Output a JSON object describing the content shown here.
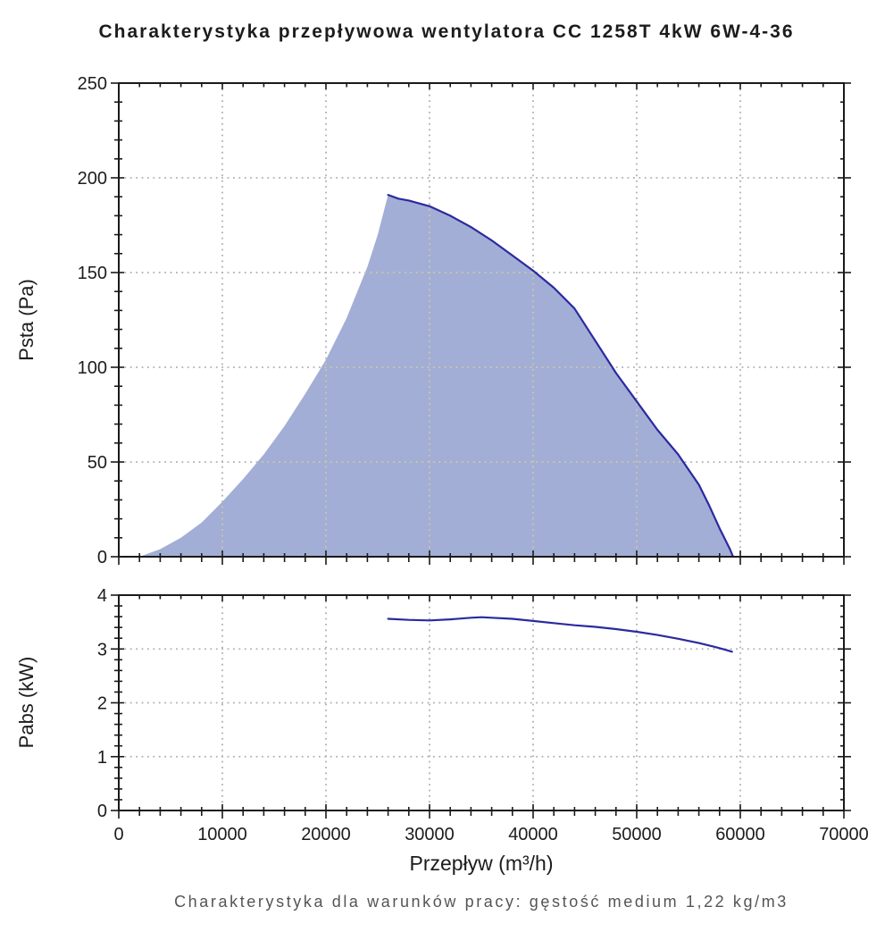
{
  "title": "Charakterystyka przepływowa wentylatora CC 1258T 4kW 6W-4-36",
  "footer": "Charakterystyka dla warunków pracy: gęstość medium 1,22 kg/m3",
  "colors": {
    "curve": "#2a2aa0",
    "fill": "#a2aed5",
    "grid": "#b0b0b0",
    "grid_on_fill": "#cfc9a4",
    "axis": "#1a1a1a",
    "title_text": "#1c1c1c",
    "footer_text": "#555555"
  },
  "chart_data": [
    {
      "type": "area",
      "title": "",
      "xlabel": "",
      "ylabel": "Psta (Pa)",
      "xlim": [
        0,
        70000
      ],
      "ylim": [
        0,
        250
      ],
      "xticks": [
        0,
        10000,
        20000,
        30000,
        40000,
        50000,
        60000,
        70000
      ],
      "yticks": [
        0,
        50,
        100,
        150,
        200,
        250
      ],
      "x_minor_step": 2000,
      "y_minor_step": 10,
      "show_x_tick_labels": false,
      "grid": true,
      "legend": "none",
      "series": [
        {
          "name": "Psta fill boundary (unstroked rising edge)",
          "role": "fill-edge",
          "x": [
            2000,
            4000,
            6000,
            8000,
            10000,
            12000,
            14000,
            16000,
            18000,
            20000,
            22000,
            24000,
            25000,
            26000
          ],
          "y": [
            0,
            4,
            10,
            18,
            29,
            41,
            54,
            69,
            86,
            104,
            126,
            153,
            170,
            191
          ]
        },
        {
          "name": "Psta working-range curve",
          "role": "line",
          "x": [
            26000,
            27000,
            28000,
            30000,
            32000,
            34000,
            36000,
            38000,
            40000,
            42000,
            44000,
            46000,
            48000,
            50000,
            52000,
            54000,
            56000,
            57000,
            58000,
            59000,
            59300
          ],
          "y": [
            191,
            189,
            188,
            185,
            180,
            174,
            167,
            159,
            151,
            142,
            131,
            114,
            97,
            82,
            67,
            54,
            38,
            27,
            15,
            4,
            0
          ]
        }
      ]
    },
    {
      "type": "line",
      "title": "",
      "xlabel": "Przepływ (m³/h)",
      "ylabel": "Pabs (kW)",
      "xlim": [
        0,
        70000
      ],
      "ylim": [
        0,
        4
      ],
      "xticks": [
        0,
        10000,
        20000,
        30000,
        40000,
        50000,
        60000,
        70000
      ],
      "yticks": [
        0,
        1,
        2,
        3,
        4
      ],
      "x_minor_step": 2000,
      "y_minor_step": 0.2,
      "show_x_tick_labels": true,
      "grid": true,
      "legend": "none",
      "series": [
        {
          "name": "Pabs absorbed power",
          "role": "line",
          "x": [
            26000,
            28000,
            30000,
            32000,
            34000,
            35000,
            36000,
            38000,
            40000,
            42000,
            44000,
            46000,
            48000,
            50000,
            52000,
            54000,
            56000,
            57500,
            58500,
            59200
          ],
          "y": [
            3.56,
            3.54,
            3.53,
            3.55,
            3.58,
            3.59,
            3.58,
            3.56,
            3.52,
            3.48,
            3.44,
            3.41,
            3.37,
            3.32,
            3.26,
            3.19,
            3.11,
            3.04,
            2.99,
            2.95
          ]
        }
      ]
    }
  ]
}
